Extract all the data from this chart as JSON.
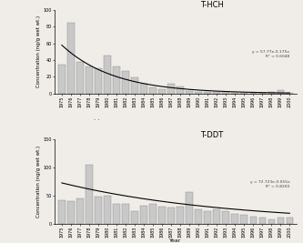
{
  "hch_title": "T-HCH",
  "ddt_title": "T-DDT",
  "xlabel": "Year",
  "ylabel_hch": "Concentration (ng/g wet wt.)",
  "ylabel_ddt": "Concentration (ng/g wet wt.)",
  "hch_eq_text": "y = 57.77e-0.175x",
  "hch_r2": "R² = 0.6048",
  "ddt_eq_text": "y = 72.723e-0.055x",
  "ddt_r2": "R² = 0.8200",
  "hch_ylim": [
    0,
    100
  ],
  "ddt_ylim": [
    0,
    150
  ],
  "hch_yticks": [
    0,
    20,
    40,
    60,
    80,
    100
  ],
  "ddt_yticks": [
    0,
    50,
    100,
    150
  ],
  "years": [
    1975,
    1976,
    1977,
    1978,
    1979,
    1980,
    1981,
    1982,
    1983,
    1984,
    1985,
    1986,
    1987,
    1988,
    1989,
    1990,
    1991,
    1992,
    1993,
    1994,
    1995,
    1996,
    1997,
    1998,
    1999,
    2000
  ],
  "hch_values": [
    35,
    85,
    38,
    32,
    30,
    45,
    32,
    27,
    19,
    12,
    7,
    5,
    12,
    8,
    3,
    2,
    2,
    2,
    2,
    1,
    1,
    1,
    1,
    2,
    4,
    1
  ],
  "ddt_values": [
    42,
    40,
    45,
    105,
    48,
    50,
    35,
    35,
    22,
    32,
    35,
    30,
    28,
    30,
    57,
    25,
    22,
    25,
    22,
    18,
    15,
    12,
    10,
    8,
    10,
    10
  ],
  "bar_color": "#c8c8c8",
  "bar_edge_color": "#888888",
  "curve_color": "#000000",
  "background_color": "#f0ede8",
  "hch_a": 57.77,
  "hch_b": -0.175,
  "ddt_a": 72.723,
  "ddt_b": -0.055,
  "tick_fontsize": 3.5,
  "label_fontsize": 4.0,
  "title_fontsize": 6.0,
  "eq_fontsize": 3.2,
  "between_dots": "· ·"
}
